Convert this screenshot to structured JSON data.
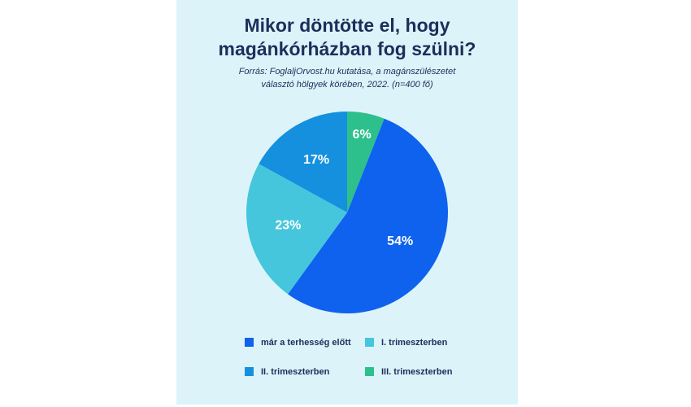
{
  "chart_data": {
    "type": "pie",
    "title": [
      "Mikor döntötte el, hogy",
      "magánkórházban fog szülni?"
    ],
    "subtitle": [
      "Forrás: FoglaljOrvost.hu kutatása, a magánszülészetet",
      "választó hölgyek körében, 2022. (n=400 fő)"
    ],
    "categories": [
      "már a terhesség előtt",
      "I. trimeszterben",
      "II. trimeszterben",
      "III. trimeszterben"
    ],
    "values": [
      54,
      23,
      17,
      6
    ],
    "value_labels": [
      "54%",
      "23%",
      "17%",
      "6%"
    ],
    "colors": [
      "#0f62ee",
      "#45c6dc",
      "#1590df",
      "#2dbf8c"
    ]
  }
}
